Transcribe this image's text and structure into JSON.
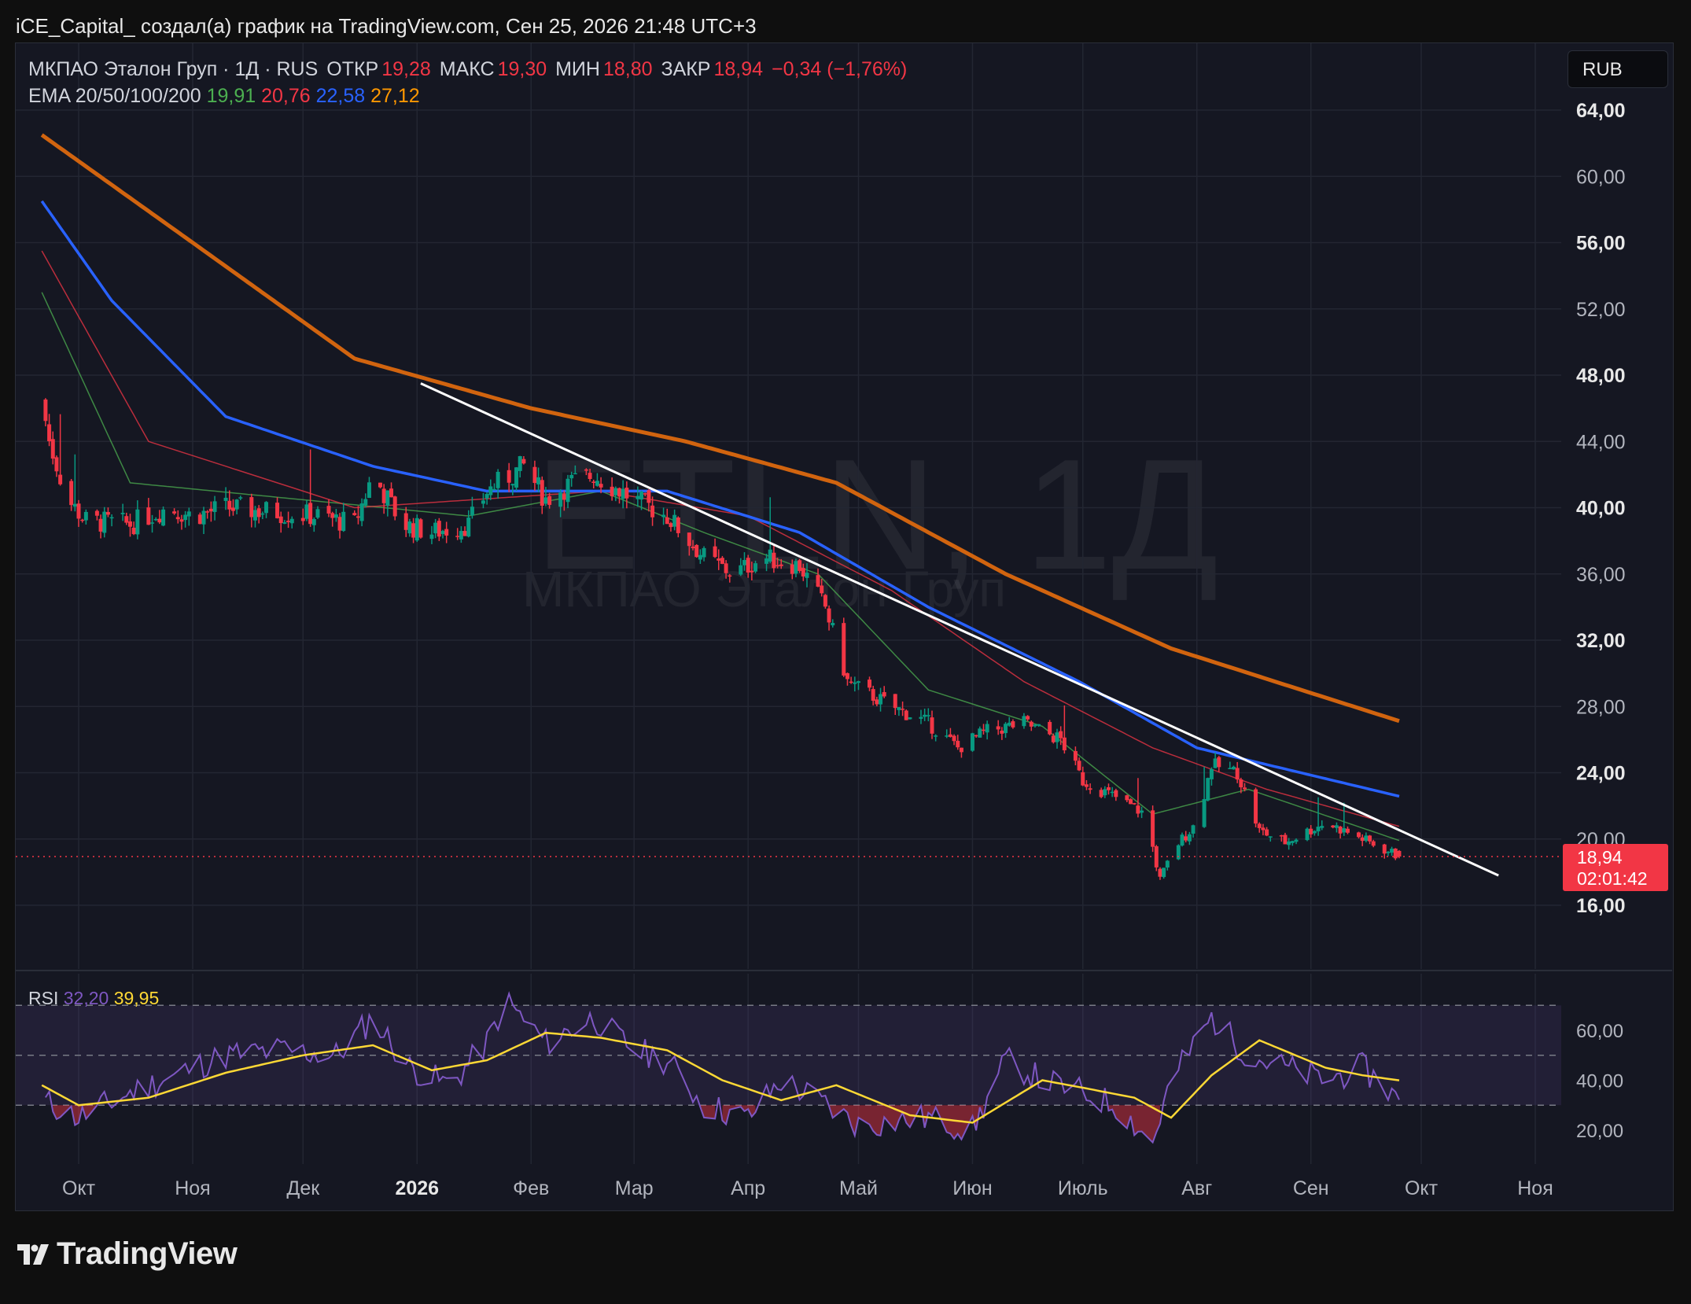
{
  "attribution": "iCE_Capital_ создал(а) график на TradingView.com, Сен 25, 2026 21:48 UTC+3",
  "legend": {
    "symbol": "МКПАО Эталон Груп · 1Д · RUS",
    "open_label": "ОТКР",
    "open": "19,28",
    "high_label": "МАКС",
    "high": "19,30",
    "low_label": "МИН",
    "low": "18,80",
    "close_label": "ЗАКР",
    "close": "18,94",
    "change": "−0,34 (−1,76%)"
  },
  "ema_legend": {
    "label": "EMA 20/50/100/200",
    "ema20": "19,91",
    "ema50": "20,76",
    "ema100": "22,58",
    "ema200": "27,12"
  },
  "rsi_legend": {
    "label": "RSI",
    "rsi": "32,20",
    "rsi_ma": "39,95"
  },
  "currency": "RUB",
  "price_tag": {
    "price": "18,94",
    "countdown": "02:01:42"
  },
  "watermark": {
    "ticker": "ETLN, 1Д",
    "name": "МКПАО Эталон Груп"
  },
  "brand": "TradingView",
  "colors": {
    "up": "#089981",
    "down": "#f23645",
    "ema20": "#4caf50",
    "ema50": "#f23645",
    "ema100": "#2962ff",
    "ema200": "#d1640f",
    "rsi": "#7e57c2",
    "rsi_ma": "#fdd835",
    "trendline": "#ffffff"
  },
  "chart_data": [
    {
      "type": "candlestick",
      "x_ticks": [
        "Окт",
        "Ноя",
        "Дек",
        "2026",
        "Фев",
        "Мар",
        "Апр",
        "Май",
        "Июн",
        "Июль",
        "Авг",
        "Сен",
        "Окт",
        "Ноя"
      ],
      "y_ticks": [
        "64,00",
        "60,00",
        "56,00",
        "52,00",
        "48,00",
        "44,00",
        "40,00",
        "36,00",
        "32,00",
        "28,00",
        "24,00",
        "20,00",
        "16,00"
      ],
      "ylim": [
        12.5,
        64.5
      ],
      "close_anchors": [
        [
          "2025-09-21",
          46.5
        ],
        [
          "2025-09-23",
          44.0
        ],
        [
          "2025-09-28",
          40.5
        ],
        [
          "2025-10-03",
          39.2
        ],
        [
          "2025-10-15",
          39.0
        ],
        [
          "2025-10-25",
          40.0
        ],
        [
          "2025-11-01",
          39.5
        ],
        [
          "2025-11-10",
          40.0
        ],
        [
          "2025-11-20",
          39.8
        ],
        [
          "2025-12-05",
          39.5
        ],
        [
          "2025-12-15",
          39.0
        ],
        [
          "2025-12-20",
          42.0
        ],
        [
          "2025-12-28",
          39.0
        ],
        [
          "2026-01-05",
          38.5
        ],
        [
          "2026-01-15",
          39.0
        ],
        [
          "2026-01-20",
          41.0
        ],
        [
          "2026-01-30",
          42.5
        ],
        [
          "2026-02-05",
          40.5
        ],
        [
          "2026-02-12",
          41.5
        ],
        [
          "2026-02-18",
          42.0
        ],
        [
          "2026-03-01",
          40.5
        ],
        [
          "2026-03-10",
          39.5
        ],
        [
          "2026-03-20",
          37.0
        ],
        [
          "2026-03-28",
          36.0
        ],
        [
          "2026-04-05",
          37.0
        ],
        [
          "2026-04-15",
          36.5
        ],
        [
          "2026-04-22",
          34.0
        ],
        [
          "2026-04-28",
          29.5
        ],
        [
          "2026-05-10",
          28.0
        ],
        [
          "2026-05-20",
          27.0
        ],
        [
          "2026-05-28",
          25.5
        ],
        [
          "2026-06-05",
          26.5
        ],
        [
          "2026-06-15",
          27.0
        ],
        [
          "2026-06-25",
          26.0
        ],
        [
          "2026-07-01",
          23.5
        ],
        [
          "2026-07-10",
          22.5
        ],
        [
          "2026-07-18",
          21.5
        ],
        [
          "2026-07-22",
          17.5
        ],
        [
          "2026-07-26",
          19.5
        ],
        [
          "2026-08-01",
          21.0
        ],
        [
          "2026-08-05",
          24.5
        ],
        [
          "2026-08-12",
          24.0
        ],
        [
          "2026-08-18",
          20.5
        ],
        [
          "2026-08-25",
          19.8
        ],
        [
          "2026-09-05",
          21.0
        ],
        [
          "2026-09-15",
          20.0
        ],
        [
          "2026-09-25",
          18.94
        ]
      ],
      "ema_anchors": {
        "ema20": [
          [
            "2025-09-21",
            53.0
          ],
          [
            "2025-10-15",
            41.5
          ],
          [
            "2026-01-15",
            39.5
          ],
          [
            "2026-02-20",
            41.0
          ],
          [
            "2026-03-20",
            38.5
          ],
          [
            "2026-04-20",
            36.0
          ],
          [
            "2026-05-20",
            29.0
          ],
          [
            "2026-06-20",
            26.8
          ],
          [
            "2026-07-20",
            21.5
          ],
          [
            "2026-08-15",
            23.0
          ],
          [
            "2026-09-25",
            19.91
          ]
        ],
        "ema50": [
          [
            "2025-09-21",
            55.5
          ],
          [
            "2025-10-20",
            44.0
          ],
          [
            "2025-12-15",
            40.0
          ],
          [
            "2026-02-20",
            41.0
          ],
          [
            "2026-04-01",
            39.5
          ],
          [
            "2026-05-10",
            35.0
          ],
          [
            "2026-06-15",
            29.5
          ],
          [
            "2026-07-20",
            25.5
          ],
          [
            "2026-08-20",
            23.0
          ],
          [
            "2026-09-25",
            20.76
          ]
        ],
        "ema100": [
          [
            "2025-09-21",
            58.5
          ],
          [
            "2025-10-10",
            52.5
          ],
          [
            "2025-11-10",
            45.5
          ],
          [
            "2025-12-20",
            42.5
          ],
          [
            "2026-01-20",
            41.0
          ],
          [
            "2026-03-10",
            41.0
          ],
          [
            "2026-04-15",
            38.5
          ],
          [
            "2026-05-20",
            34.0
          ],
          [
            "2026-06-30",
            29.5
          ],
          [
            "2026-08-01",
            25.5
          ],
          [
            "2026-09-25",
            22.58
          ]
        ],
        "ema200": [
          [
            "2025-09-21",
            62.5
          ],
          [
            "2025-11-01",
            56.0
          ],
          [
            "2025-12-15",
            49.0
          ],
          [
            "2026-02-01",
            46.0
          ],
          [
            "2026-03-15",
            44.0
          ],
          [
            "2026-04-25",
            41.5
          ],
          [
            "2026-06-10",
            36.0
          ],
          [
            "2026-07-25",
            31.5
          ],
          [
            "2026-09-25",
            27.12
          ]
        ]
      },
      "trendline": [
        [
          "2026-01-02",
          47.5
        ],
        [
          "2026-10-22",
          17.8
        ]
      ],
      "last_price": 18.94
    },
    {
      "type": "line",
      "name": "RSI",
      "y_ticks": [
        "60,00",
        "40,00",
        "20,00"
      ],
      "bands": [
        30,
        50,
        70
      ],
      "rsi_anchors": [
        [
          "2025-09-21",
          32
        ],
        [
          "2025-10-01",
          25
        ],
        [
          "2025-10-15",
          35
        ],
        [
          "2025-11-01",
          45
        ],
        [
          "2025-11-10",
          50
        ],
        [
          "2025-11-25",
          52
        ],
        [
          "2025-12-10",
          50
        ],
        [
          "2025-12-20",
          65
        ],
        [
          "2025-12-30",
          45
        ],
        [
          "2026-01-10",
          38
        ],
        [
          "2026-01-20",
          55
        ],
        [
          "2026-01-25",
          72
        ],
        [
          "2026-02-05",
          55
        ],
        [
          "2026-02-18",
          65
        ],
        [
          "2026-03-01",
          52
        ],
        [
          "2026-03-10",
          48
        ],
        [
          "2026-03-20",
          30
        ],
        [
          "2026-04-01",
          25
        ],
        [
          "2026-04-10",
          40
        ],
        [
          "2026-04-20",
          32
        ],
        [
          "2026-05-01",
          22
        ],
        [
          "2026-05-20",
          25
        ],
        [
          "2026-06-01",
          20
        ],
        [
          "2026-06-10",
          48
        ],
        [
          "2026-06-20",
          40
        ],
        [
          "2026-07-01",
          35
        ],
        [
          "2026-07-10",
          30
        ],
        [
          "2026-07-20",
          15
        ],
        [
          "2026-07-25",
          40
        ],
        [
          "2026-08-05",
          65
        ],
        [
          "2026-08-15",
          50
        ],
        [
          "2026-08-25",
          45
        ],
        [
          "2026-09-05",
          40
        ],
        [
          "2026-09-15",
          45
        ],
        [
          "2026-09-25",
          32.2
        ]
      ],
      "rsi_ma_anchors": [
        [
          "2025-09-21",
          38
        ],
        [
          "2025-10-01",
          30
        ],
        [
          "2025-10-20",
          33
        ],
        [
          "2025-11-10",
          43
        ],
        [
          "2025-12-01",
          50
        ],
        [
          "2025-12-20",
          54
        ],
        [
          "2026-01-05",
          44
        ],
        [
          "2026-01-20",
          48
        ],
        [
          "2026-02-05",
          59
        ],
        [
          "2026-02-20",
          57
        ],
        [
          "2026-03-10",
          52
        ],
        [
          "2026-03-25",
          40
        ],
        [
          "2026-04-10",
          32
        ],
        [
          "2026-04-25",
          38
        ],
        [
          "2026-05-15",
          26
        ],
        [
          "2026-06-01",
          23
        ],
        [
          "2026-06-20",
          40
        ],
        [
          "2026-07-01",
          37
        ],
        [
          "2026-07-15",
          33
        ],
        [
          "2026-07-25",
          25
        ],
        [
          "2026-08-05",
          42
        ],
        [
          "2026-08-18",
          56
        ],
        [
          "2026-09-05",
          45
        ],
        [
          "2026-09-15",
          42
        ],
        [
          "2026-09-25",
          39.95
        ]
      ]
    }
  ]
}
